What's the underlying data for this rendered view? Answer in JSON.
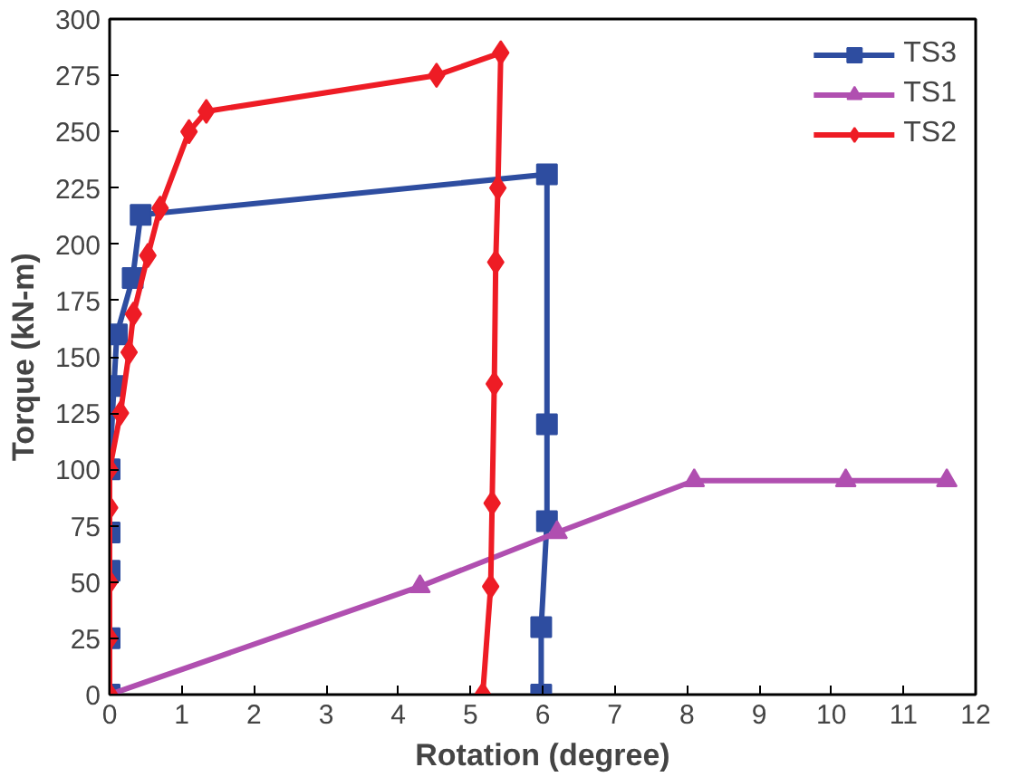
{
  "chart_data": {
    "type": "line",
    "xlabel": "Rotation (degree)",
    "ylabel": "Torque (kN-m)",
    "xlim": [
      0,
      12
    ],
    "xticks": [
      0,
      1,
      2,
      3,
      4,
      5,
      6,
      7,
      8,
      9,
      10,
      11,
      12
    ],
    "ylim": [
      0,
      300
    ],
    "yticks": [
      0,
      25,
      50,
      75,
      100,
      125,
      150,
      175,
      200,
      225,
      250,
      275,
      300
    ],
    "grid": false,
    "legend": "top right",
    "series": [
      {
        "name": "TS3",
        "color": "#2e4da0",
        "marker": "square",
        "x": [
          0,
          0,
          0,
          0,
          0,
          0.06,
          0.1,
          0.32,
          0.43,
          6.06,
          6.06,
          6.06,
          5.98,
          5.98
        ],
        "values": [
          0,
          25,
          55,
          72,
          100,
          137,
          160,
          185,
          213,
          231,
          120,
          77,
          30,
          0
        ]
      },
      {
        "name": "TS1",
        "color": "#b04fb0",
        "marker": "triangle",
        "x": [
          0,
          4.3,
          6.2,
          8.1,
          10.2,
          11.6
        ],
        "values": [
          0,
          48,
          72,
          95,
          95,
          95
        ]
      },
      {
        "name": "TS2",
        "color": "#ee1c25",
        "marker": "diamond",
        "x": [
          0,
          0,
          0,
          0,
          0,
          0.15,
          0.27,
          0.33,
          0.53,
          0.7,
          1.1,
          1.34,
          4.53,
          5.42,
          5.38,
          5.35,
          5.33,
          5.3,
          5.28,
          5.17
        ],
        "values": [
          0,
          25,
          50,
          83,
          100,
          125,
          152,
          169,
          195,
          216,
          250,
          259,
          275,
          285,
          225,
          192,
          138,
          85,
          48,
          0
        ]
      }
    ]
  }
}
